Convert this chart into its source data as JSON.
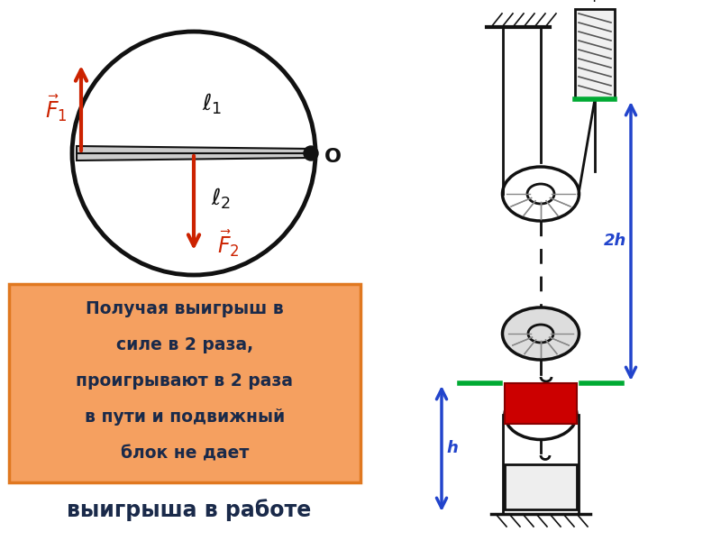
{
  "bg_color": "#ffffff",
  "figsize": [
    8.0,
    6.0
  ],
  "dpi": 100,
  "arrow_color": "#cc2200",
  "box_bg": "#f5a060",
  "box_border": "#e07820",
  "box_text_color": "#1a2a4a",
  "box_lines": [
    "Получая выигрыш в",
    "силе в 2 раза,",
    "проигрывают в 2 раза",
    "в пути и подвижный",
    "блок не дает"
  ],
  "bottom_text": "выигрыша в работе",
  "blue_color": "#2244cc",
  "green_color": "#00aa33",
  "red_color": "#cc0000",
  "black": "#111111"
}
